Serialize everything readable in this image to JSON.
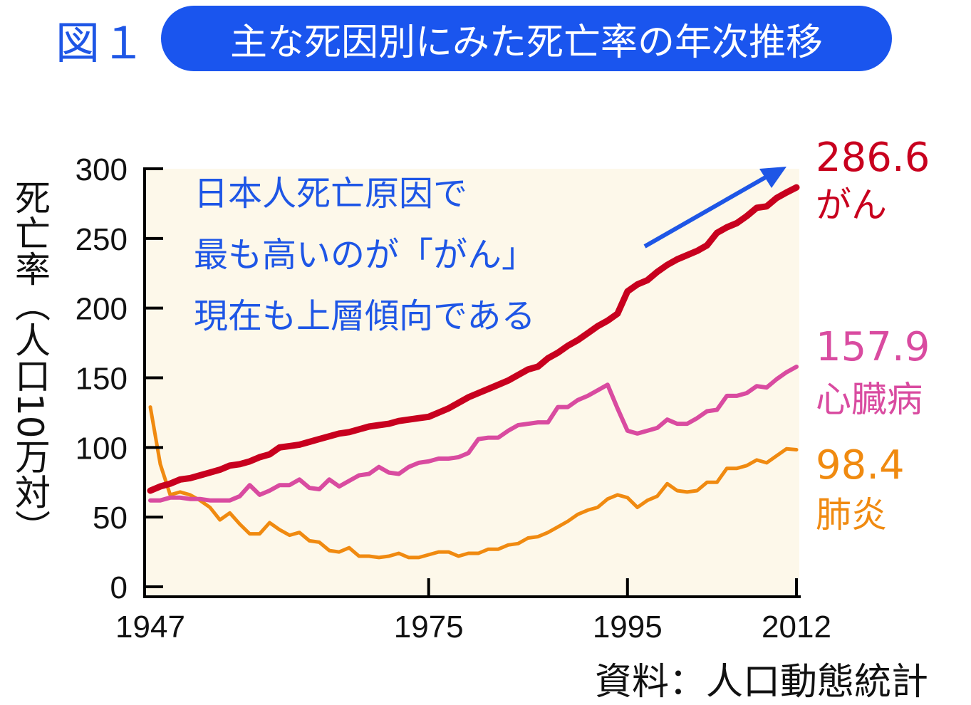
{
  "figure_label": "図１",
  "title": "主な死因別にみた死亡率の年次推移",
  "ylabel": "死亡率（人口10万対）",
  "source": "資料：人口動態統計",
  "annotation": [
    "日本人死亡原因で",
    "最も高いのが「がん」",
    "現在も上層傾向である"
  ],
  "colors": {
    "title_bg": "#1a55ee",
    "plot_bg": "#fdf8ea",
    "annotation_text": "#1e56e6",
    "cancer": "#c8001e",
    "heart": "#d94ba0",
    "pneumonia": "#f08a10"
  },
  "chart_data": {
    "type": "line",
    "title": "主な死因別にみた死亡率の年次推移",
    "xlabel": "",
    "ylabel": "死亡率（人口10万対）",
    "xlim": [
      1947,
      2012
    ],
    "ylim": [
      0,
      300
    ],
    "x_ticks": [
      1947,
      1975,
      1995,
      2012
    ],
    "y_ticks": [
      0,
      50,
      100,
      150,
      200,
      250,
      300
    ],
    "grid": false,
    "series": [
      {
        "name": "がん",
        "end_label": "286.6",
        "color": "#c8001e",
        "points": [
          [
            1947,
            69
          ],
          [
            1948,
            72
          ],
          [
            1949,
            74
          ],
          [
            1950,
            77
          ],
          [
            1951,
            78
          ],
          [
            1952,
            80
          ],
          [
            1953,
            82
          ],
          [
            1954,
            84
          ],
          [
            1955,
            87
          ],
          [
            1956,
            88
          ],
          [
            1957,
            90
          ],
          [
            1958,
            93
          ],
          [
            1959,
            95
          ],
          [
            1960,
            100
          ],
          [
            1961,
            101
          ],
          [
            1962,
            102
          ],
          [
            1963,
            104
          ],
          [
            1964,
            106
          ],
          [
            1965,
            108
          ],
          [
            1966,
            110
          ],
          [
            1967,
            111
          ],
          [
            1968,
            113
          ],
          [
            1969,
            115
          ],
          [
            1970,
            116
          ],
          [
            1971,
            117
          ],
          [
            1972,
            119
          ],
          [
            1973,
            120
          ],
          [
            1974,
            121
          ],
          [
            1975,
            122
          ],
          [
            1976,
            125
          ],
          [
            1977,
            128
          ],
          [
            1978,
            132
          ],
          [
            1979,
            136
          ],
          [
            1980,
            139
          ],
          [
            1981,
            142
          ],
          [
            1982,
            145
          ],
          [
            1983,
            148
          ],
          [
            1984,
            152
          ],
          [
            1985,
            156
          ],
          [
            1986,
            158
          ],
          [
            1987,
            164
          ],
          [
            1988,
            168
          ],
          [
            1989,
            173
          ],
          [
            1990,
            177
          ],
          [
            1991,
            182
          ],
          [
            1992,
            187
          ],
          [
            1993,
            191
          ],
          [
            1994,
            196
          ],
          [
            1995,
            212
          ],
          [
            1996,
            217
          ],
          [
            1997,
            220
          ],
          [
            1998,
            226
          ],
          [
            1999,
            231
          ],
          [
            2000,
            235
          ],
          [
            2001,
            238
          ],
          [
            2002,
            241
          ],
          [
            2003,
            245
          ],
          [
            2004,
            254
          ],
          [
            2005,
            258
          ],
          [
            2006,
            261
          ],
          [
            2007,
            266
          ],
          [
            2008,
            272
          ],
          [
            2009,
            273
          ],
          [
            2010,
            279
          ],
          [
            2011,
            283
          ],
          [
            2012,
            286.6
          ]
        ]
      },
      {
        "name": "心臓病",
        "end_label": "157.9",
        "color": "#d94ba0",
        "points": [
          [
            1947,
            62
          ],
          [
            1948,
            62
          ],
          [
            1949,
            64
          ],
          [
            1950,
            64
          ],
          [
            1951,
            63
          ],
          [
            1952,
            63
          ],
          [
            1953,
            62
          ],
          [
            1954,
            62
          ],
          [
            1955,
            62
          ],
          [
            1956,
            65
          ],
          [
            1957,
            73
          ],
          [
            1958,
            66
          ],
          [
            1959,
            69
          ],
          [
            1960,
            73
          ],
          [
            1961,
            73
          ],
          [
            1962,
            77
          ],
          [
            1963,
            71
          ],
          [
            1964,
            70
          ],
          [
            1965,
            77
          ],
          [
            1966,
            72
          ],
          [
            1967,
            76
          ],
          [
            1968,
            80
          ],
          [
            1969,
            81
          ],
          [
            1970,
            86
          ],
          [
            1971,
            82
          ],
          [
            1972,
            81
          ],
          [
            1973,
            86
          ],
          [
            1974,
            89
          ],
          [
            1975,
            90
          ],
          [
            1976,
            92
          ],
          [
            1977,
            92
          ],
          [
            1978,
            93
          ],
          [
            1979,
            96
          ],
          [
            1980,
            106
          ],
          [
            1981,
            107
          ],
          [
            1982,
            107
          ],
          [
            1983,
            112
          ],
          [
            1984,
            116
          ],
          [
            1985,
            117
          ],
          [
            1986,
            118
          ],
          [
            1987,
            118
          ],
          [
            1988,
            129
          ],
          [
            1989,
            129
          ],
          [
            1990,
            134
          ],
          [
            1991,
            137
          ],
          [
            1992,
            141
          ],
          [
            1993,
            145
          ],
          [
            1994,
            128
          ],
          [
            1995,
            112
          ],
          [
            1996,
            110
          ],
          [
            1997,
            112
          ],
          [
            1998,
            114
          ],
          [
            1999,
            120
          ],
          [
            2000,
            117
          ],
          [
            2001,
            117
          ],
          [
            2002,
            121
          ],
          [
            2003,
            126
          ],
          [
            2004,
            127
          ],
          [
            2005,
            137
          ],
          [
            2006,
            137
          ],
          [
            2007,
            139
          ],
          [
            2008,
            144
          ],
          [
            2009,
            143
          ],
          [
            2010,
            149
          ],
          [
            2011,
            154
          ],
          [
            2012,
            157.9
          ]
        ]
      },
      {
        "name": "肺炎",
        "end_label": "98.4",
        "color": "#f08a10",
        "points": [
          [
            1947,
            129
          ],
          [
            1948,
            88
          ],
          [
            1949,
            66
          ],
          [
            1950,
            68
          ],
          [
            1951,
            66
          ],
          [
            1952,
            62
          ],
          [
            1953,
            57
          ],
          [
            1954,
            48
          ],
          [
            1955,
            53
          ],
          [
            1956,
            45
          ],
          [
            1957,
            38
          ],
          [
            1958,
            38
          ],
          [
            1959,
            46
          ],
          [
            1960,
            41
          ],
          [
            1961,
            37
          ],
          [
            1962,
            39
          ],
          [
            1963,
            33
          ],
          [
            1964,
            32
          ],
          [
            1965,
            26
          ],
          [
            1966,
            25
          ],
          [
            1967,
            28
          ],
          [
            1968,
            22
          ],
          [
            1969,
            22
          ],
          [
            1970,
            21
          ],
          [
            1971,
            22
          ],
          [
            1972,
            24
          ],
          [
            1973,
            21
          ],
          [
            1974,
            21
          ],
          [
            1975,
            23
          ],
          [
            1976,
            25
          ],
          [
            1977,
            25
          ],
          [
            1978,
            22
          ],
          [
            1979,
            24
          ],
          [
            1980,
            24
          ],
          [
            1981,
            27
          ],
          [
            1982,
            27
          ],
          [
            1983,
            30
          ],
          [
            1984,
            31
          ],
          [
            1985,
            35
          ],
          [
            1986,
            36
          ],
          [
            1987,
            39
          ],
          [
            1988,
            43
          ],
          [
            1989,
            47
          ],
          [
            1990,
            52
          ],
          [
            1991,
            55
          ],
          [
            1992,
            57
          ],
          [
            1993,
            63
          ],
          [
            1994,
            66
          ],
          [
            1995,
            64
          ],
          [
            1996,
            57
          ],
          [
            1997,
            62
          ],
          [
            1998,
            65
          ],
          [
            1999,
            74
          ],
          [
            2000,
            69
          ],
          [
            2001,
            68
          ],
          [
            2002,
            69
          ],
          [
            2003,
            75
          ],
          [
            2004,
            75
          ],
          [
            2005,
            85
          ],
          [
            2006,
            85
          ],
          [
            2007,
            87
          ],
          [
            2008,
            91
          ],
          [
            2009,
            89
          ],
          [
            2010,
            94
          ],
          [
            2011,
            99
          ],
          [
            2012,
            98.4
          ]
        ]
      }
    ]
  }
}
